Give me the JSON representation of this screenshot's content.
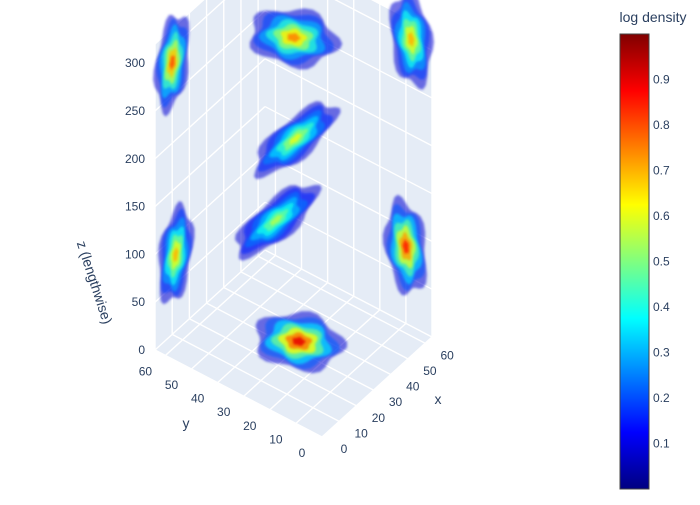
{
  "chart_data": {
    "type": "volume",
    "title": "",
    "axes": {
      "x": {
        "label": "x",
        "ticks": [
          0,
          10,
          20,
          30,
          40,
          50,
          60
        ],
        "range": [
          0,
          64
        ]
      },
      "y": {
        "label": "y",
        "ticks": [
          0,
          10,
          20,
          30,
          40,
          50,
          60
        ],
        "range": [
          0,
          64
        ]
      },
      "z": {
        "label": "z (lengthwise)",
        "ticks": [
          0,
          50,
          100,
          150,
          200,
          250,
          300
        ],
        "range": [
          0,
          320
        ]
      }
    },
    "colorbar": {
      "title": "log density",
      "ticks": [
        0.1,
        0.2,
        0.3,
        0.4,
        0.5,
        0.6,
        0.7,
        0.8,
        0.9
      ],
      "range": [
        0,
        1
      ],
      "colorscale": "jet"
    },
    "blobs": [
      {
        "x": 32,
        "y": 30,
        "z": 5,
        "peak": 0.9,
        "shape": "flat"
      },
      {
        "x": 12,
        "y": 64,
        "z": 80,
        "peak": 0.7,
        "shape": "wall-y"
      },
      {
        "x": 64,
        "y": 10,
        "z": 80,
        "peak": 0.85,
        "shape": "wall-x"
      },
      {
        "x": 28,
        "y": 36,
        "z": 130,
        "peak": 0.55,
        "shape": "streak"
      },
      {
        "x": 32,
        "y": 32,
        "z": 320,
        "peak": 0.75,
        "shape": "flat"
      },
      {
        "x": 4,
        "y": 60,
        "z": 300,
        "peak": 0.8,
        "shape": "wall-y"
      },
      {
        "x": 64,
        "y": 8,
        "z": 300,
        "peak": 0.7,
        "shape": "wall-x"
      },
      {
        "x": 30,
        "y": 30,
        "z": 220,
        "peak": 0.6,
        "shape": "streak"
      }
    ]
  }
}
